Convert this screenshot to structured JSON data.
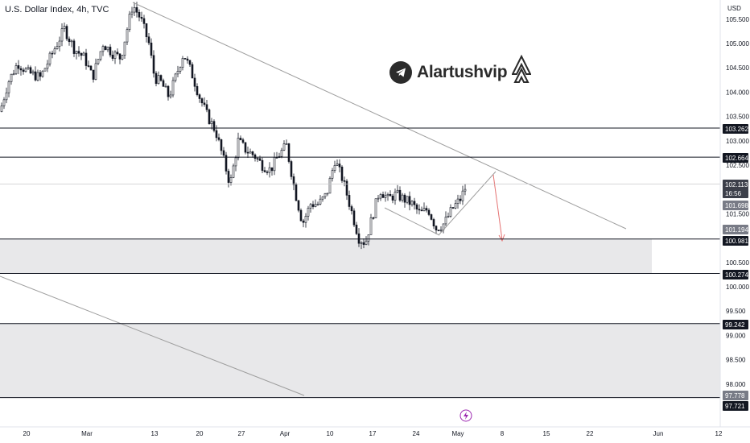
{
  "header": {
    "title": "U.S. Dollar Index, 4h, TVC"
  },
  "brand": {
    "name": "Alartushvip"
  },
  "chart_data": {
    "type": "candlestick",
    "currency": "USD",
    "y_ticks": [
      "105.500",
      "105.000",
      "104.500",
      "104.000",
      "103.500",
      "103.000",
      "102.500",
      "101.500",
      "100.500",
      "100.000",
      "99.500",
      "99.000",
      "98.500",
      "98.000"
    ],
    "x_ticks": [
      "20",
      "Mar",
      "13",
      "20",
      "27",
      "Apr",
      "10",
      "17",
      "24",
      "May",
      "8",
      "15",
      "22",
      "Jun",
      "12"
    ],
    "price_tags": [
      {
        "label": "103.262",
        "style": "black"
      },
      {
        "label": "102.664",
        "style": "black"
      },
      {
        "label": "102.113",
        "style": "dark"
      },
      {
        "label": "16:56",
        "style": "dark"
      },
      {
        "label": "101.698",
        "style": "gray"
      },
      {
        "label": "101.194",
        "style": "gray"
      },
      {
        "label": "100.981",
        "style": "black"
      },
      {
        "label": "100.274",
        "style": "black"
      },
      {
        "label": "99.242",
        "style": "black"
      },
      {
        "label": "97.778",
        "style": "gray"
      },
      {
        "label": "97.721",
        "style": "black"
      }
    ],
    "horizontal_levels": [
      103.262,
      102.664,
      100.981,
      100.274,
      99.242,
      97.721
    ],
    "zones": [
      {
        "from": 100.274,
        "to": 100.981
      },
      {
        "from": 97.721,
        "to": 99.242
      }
    ],
    "colors": {
      "candle": "#131722",
      "line": "#9e9e9e",
      "zone": "#e8e8ea",
      "arrow": "#e57373",
      "tag_black": "#131722",
      "tag_gray": "#787b86"
    }
  }
}
